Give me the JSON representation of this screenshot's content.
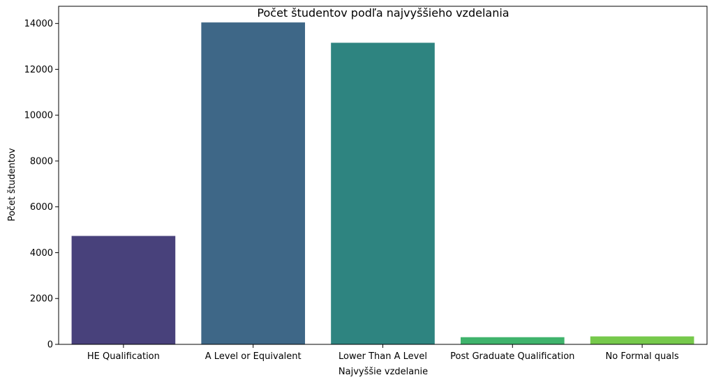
{
  "chart_data": {
    "type": "bar",
    "title": "Počet študentov podľa najvyššieho vzdelania",
    "xlabel": "Najvyššie vzdelanie",
    "ylabel": "Počet študentov",
    "categories": [
      "HE Qualification",
      "A Level or Equivalent",
      "Lower Than A Level",
      "Post Graduate Qualification",
      "No Formal quals"
    ],
    "values": [
      4730,
      14045,
      13158,
      313,
      347
    ],
    "colors": [
      "#48417b",
      "#3e6787",
      "#2e8480",
      "#3fb36c",
      "#76c94b"
    ],
    "ylim": [
      0,
      14750
    ],
    "yticks": [
      0,
      2000,
      4000,
      6000,
      8000,
      10000,
      12000,
      14000
    ],
    "ytick_labels": [
      "0",
      "2000",
      "4000",
      "6000",
      "8000",
      "10000",
      "12000",
      "14000"
    ],
    "grid": false,
    "legend": "none"
  }
}
